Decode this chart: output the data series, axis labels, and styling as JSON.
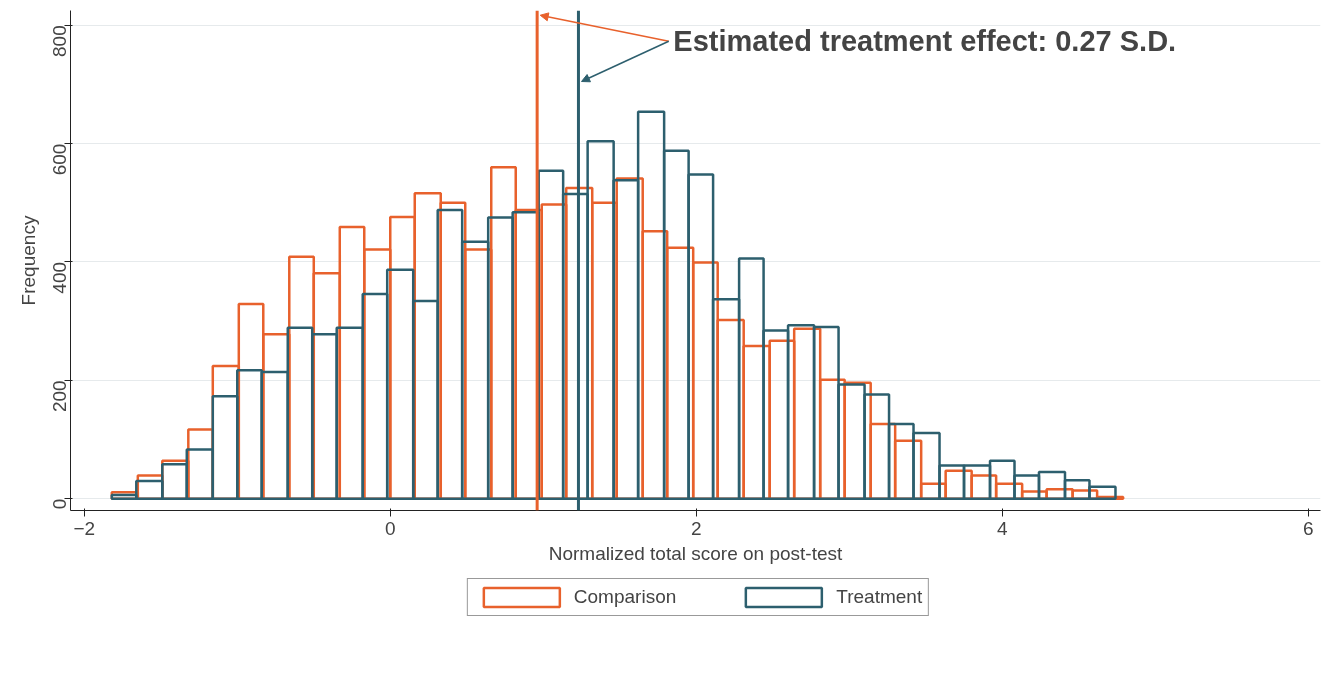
{
  "chart_data": {
    "type": "histogram",
    "xlabel": "Normalized total score on post-test",
    "ylabel": "Frequency",
    "xlim": [
      -2.09,
      6.08
    ],
    "ylim": [
      -20,
      825
    ],
    "xticks": [
      -2,
      0,
      2,
      4,
      6
    ],
    "yticks": [
      0,
      200,
      400,
      600,
      800
    ],
    "grid": "y",
    "legend": "bottom",
    "series": [
      {
        "name": "Comparison",
        "color": "#e8612c",
        "values": [
          11,
          39,
          64,
          117,
          224,
          329,
          278,
          409,
          381,
          459,
          421,
          476,
          516,
          500,
          421,
          560,
          488,
          497,
          525,
          500,
          541,
          452,
          424,
          399,
          302,
          258,
          267,
          287,
          201,
          196,
          126,
          98,
          25,
          47,
          39,
          25,
          12,
          16,
          14,
          3
        ]
      },
      {
        "name": "Treatment",
        "color": "#2d5f6e",
        "bins": [
          -1.82,
          -1.66,
          -1.49,
          -1.33,
          -1.16,
          -1.0,
          -0.84,
          -0.67,
          -0.51,
          -0.35,
          -0.18,
          -0.02,
          0.15,
          0.31,
          0.47,
          0.64,
          0.8,
          0.97,
          1.13,
          1.29,
          1.46,
          1.62,
          1.79,
          1.95,
          2.11,
          2.28,
          2.44,
          2.6,
          2.77,
          2.93,
          3.1,
          3.26,
          3.42,
          3.59,
          3.75,
          3.92,
          4.08,
          4.24,
          4.41,
          4.57,
          4.74
        ],
        "values": [
          6,
          30,
          58,
          83,
          173,
          217,
          214,
          289,
          278,
          289,
          346,
          387,
          334,
          488,
          434,
          475,
          484,
          554,
          515,
          604,
          538,
          654,
          588,
          548,
          337,
          406,
          284,
          293,
          290,
          193,
          176,
          126,
          111,
          56,
          56,
          64,
          39,
          45,
          31,
          20
        ]
      }
    ],
    "bins": [
      -1.82,
      -1.65,
      -1.49,
      -1.32,
      -1.16,
      -0.99,
      -0.83,
      -0.66,
      -0.5,
      -0.33,
      -0.17,
      0.0,
      0.16,
      0.33,
      0.49,
      0.66,
      0.82,
      0.99,
      1.15,
      1.32,
      1.48,
      1.65,
      1.81,
      1.98,
      2.14,
      2.31,
      2.48,
      2.64,
      2.81,
      2.97,
      3.14,
      3.3,
      3.47,
      3.63,
      3.8,
      3.96,
      4.13,
      4.29,
      4.46,
      4.62,
      4.79
    ],
    "ref_lines": [
      {
        "axis": "x",
        "value": 0.96,
        "color": "#e8612c"
      },
      {
        "axis": "x",
        "value": 1.23,
        "color": "#2d5f6e"
      }
    ],
    "annotations": [
      {
        "text": "Estimated treatment effect: 0.27 S.D.",
        "x": 1.23,
        "y": 705
      }
    ]
  }
}
